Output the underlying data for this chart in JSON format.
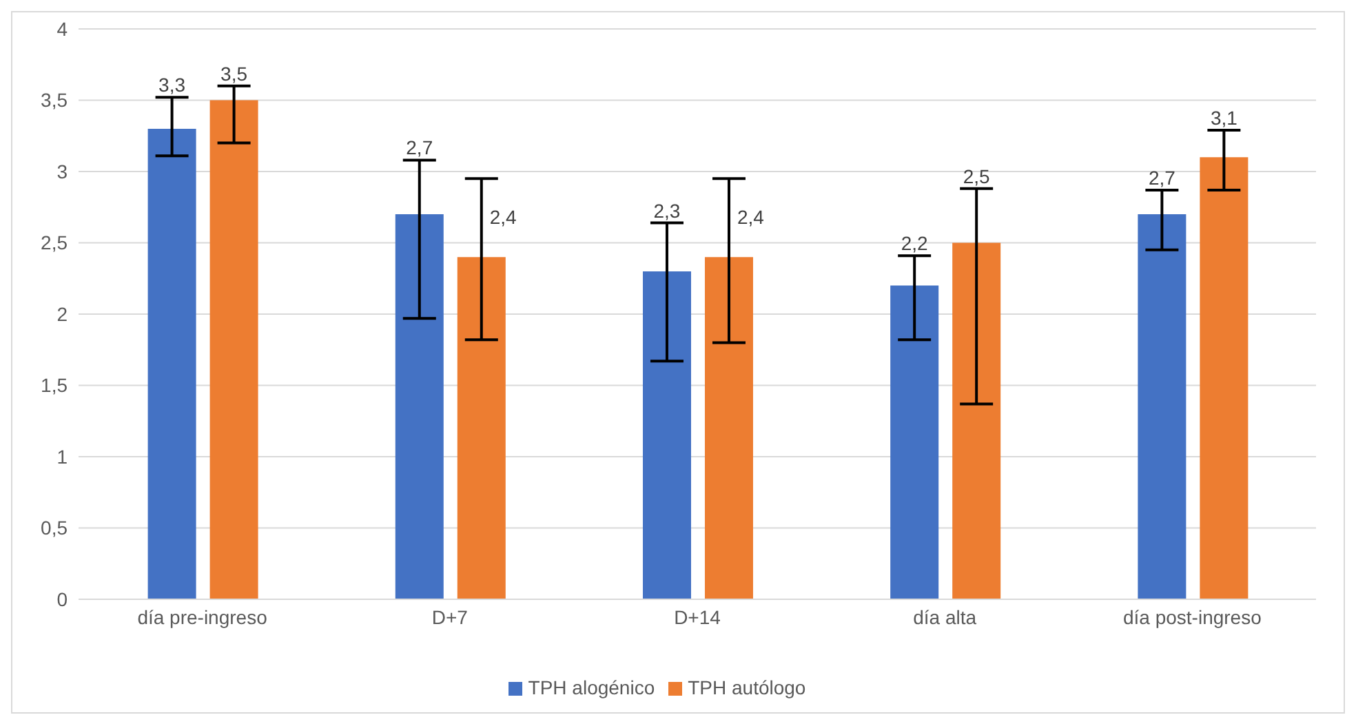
{
  "chart_data": {
    "type": "bar",
    "categories": [
      "día pre-ingreso",
      "D+7",
      "D+14",
      "día alta",
      "día post-ingreso"
    ],
    "series": [
      {
        "name": "TPH alogénico",
        "color": "#4472c4",
        "values": [
          3.3,
          2.7,
          2.3,
          2.2,
          2.7
        ],
        "value_labels": [
          "3,3",
          "2,7",
          "2,3",
          "2,2",
          "2,7"
        ],
        "errors": [
          [
            3.11,
            3.52
          ],
          [
            1.97,
            3.08
          ],
          [
            1.67,
            2.64
          ],
          [
            1.82,
            2.41
          ],
          [
            2.45,
            2.87
          ]
        ]
      },
      {
        "name": "TPH autólogo",
        "color": "#ed7d31",
        "values": [
          3.5,
          2.4,
          2.4,
          2.5,
          3.1
        ],
        "value_labels": [
          "3,5",
          "2,4",
          "2,4",
          "2,5",
          "3,1"
        ],
        "errors": [
          [
            3.2,
            3.6
          ],
          [
            1.82,
            2.95
          ],
          [
            1.8,
            2.95
          ],
          [
            1.37,
            2.88
          ],
          [
            2.87,
            3.29
          ]
        ]
      }
    ],
    "ylim": [
      0,
      4
    ],
    "yticks": [
      {
        "value": 0,
        "label": "0"
      },
      {
        "value": 0.5,
        "label": "0,5"
      },
      {
        "value": 1,
        "label": "1"
      },
      {
        "value": 1.5,
        "label": "1,5"
      },
      {
        "value": 2,
        "label": "2"
      },
      {
        "value": 2.5,
        "label": "2,5"
      },
      {
        "value": 3,
        "label": "3"
      },
      {
        "value": 3.5,
        "label": "3,5"
      },
      {
        "value": 4,
        "label": "4"
      }
    ],
    "grid": "y",
    "legend": "bottom"
  }
}
